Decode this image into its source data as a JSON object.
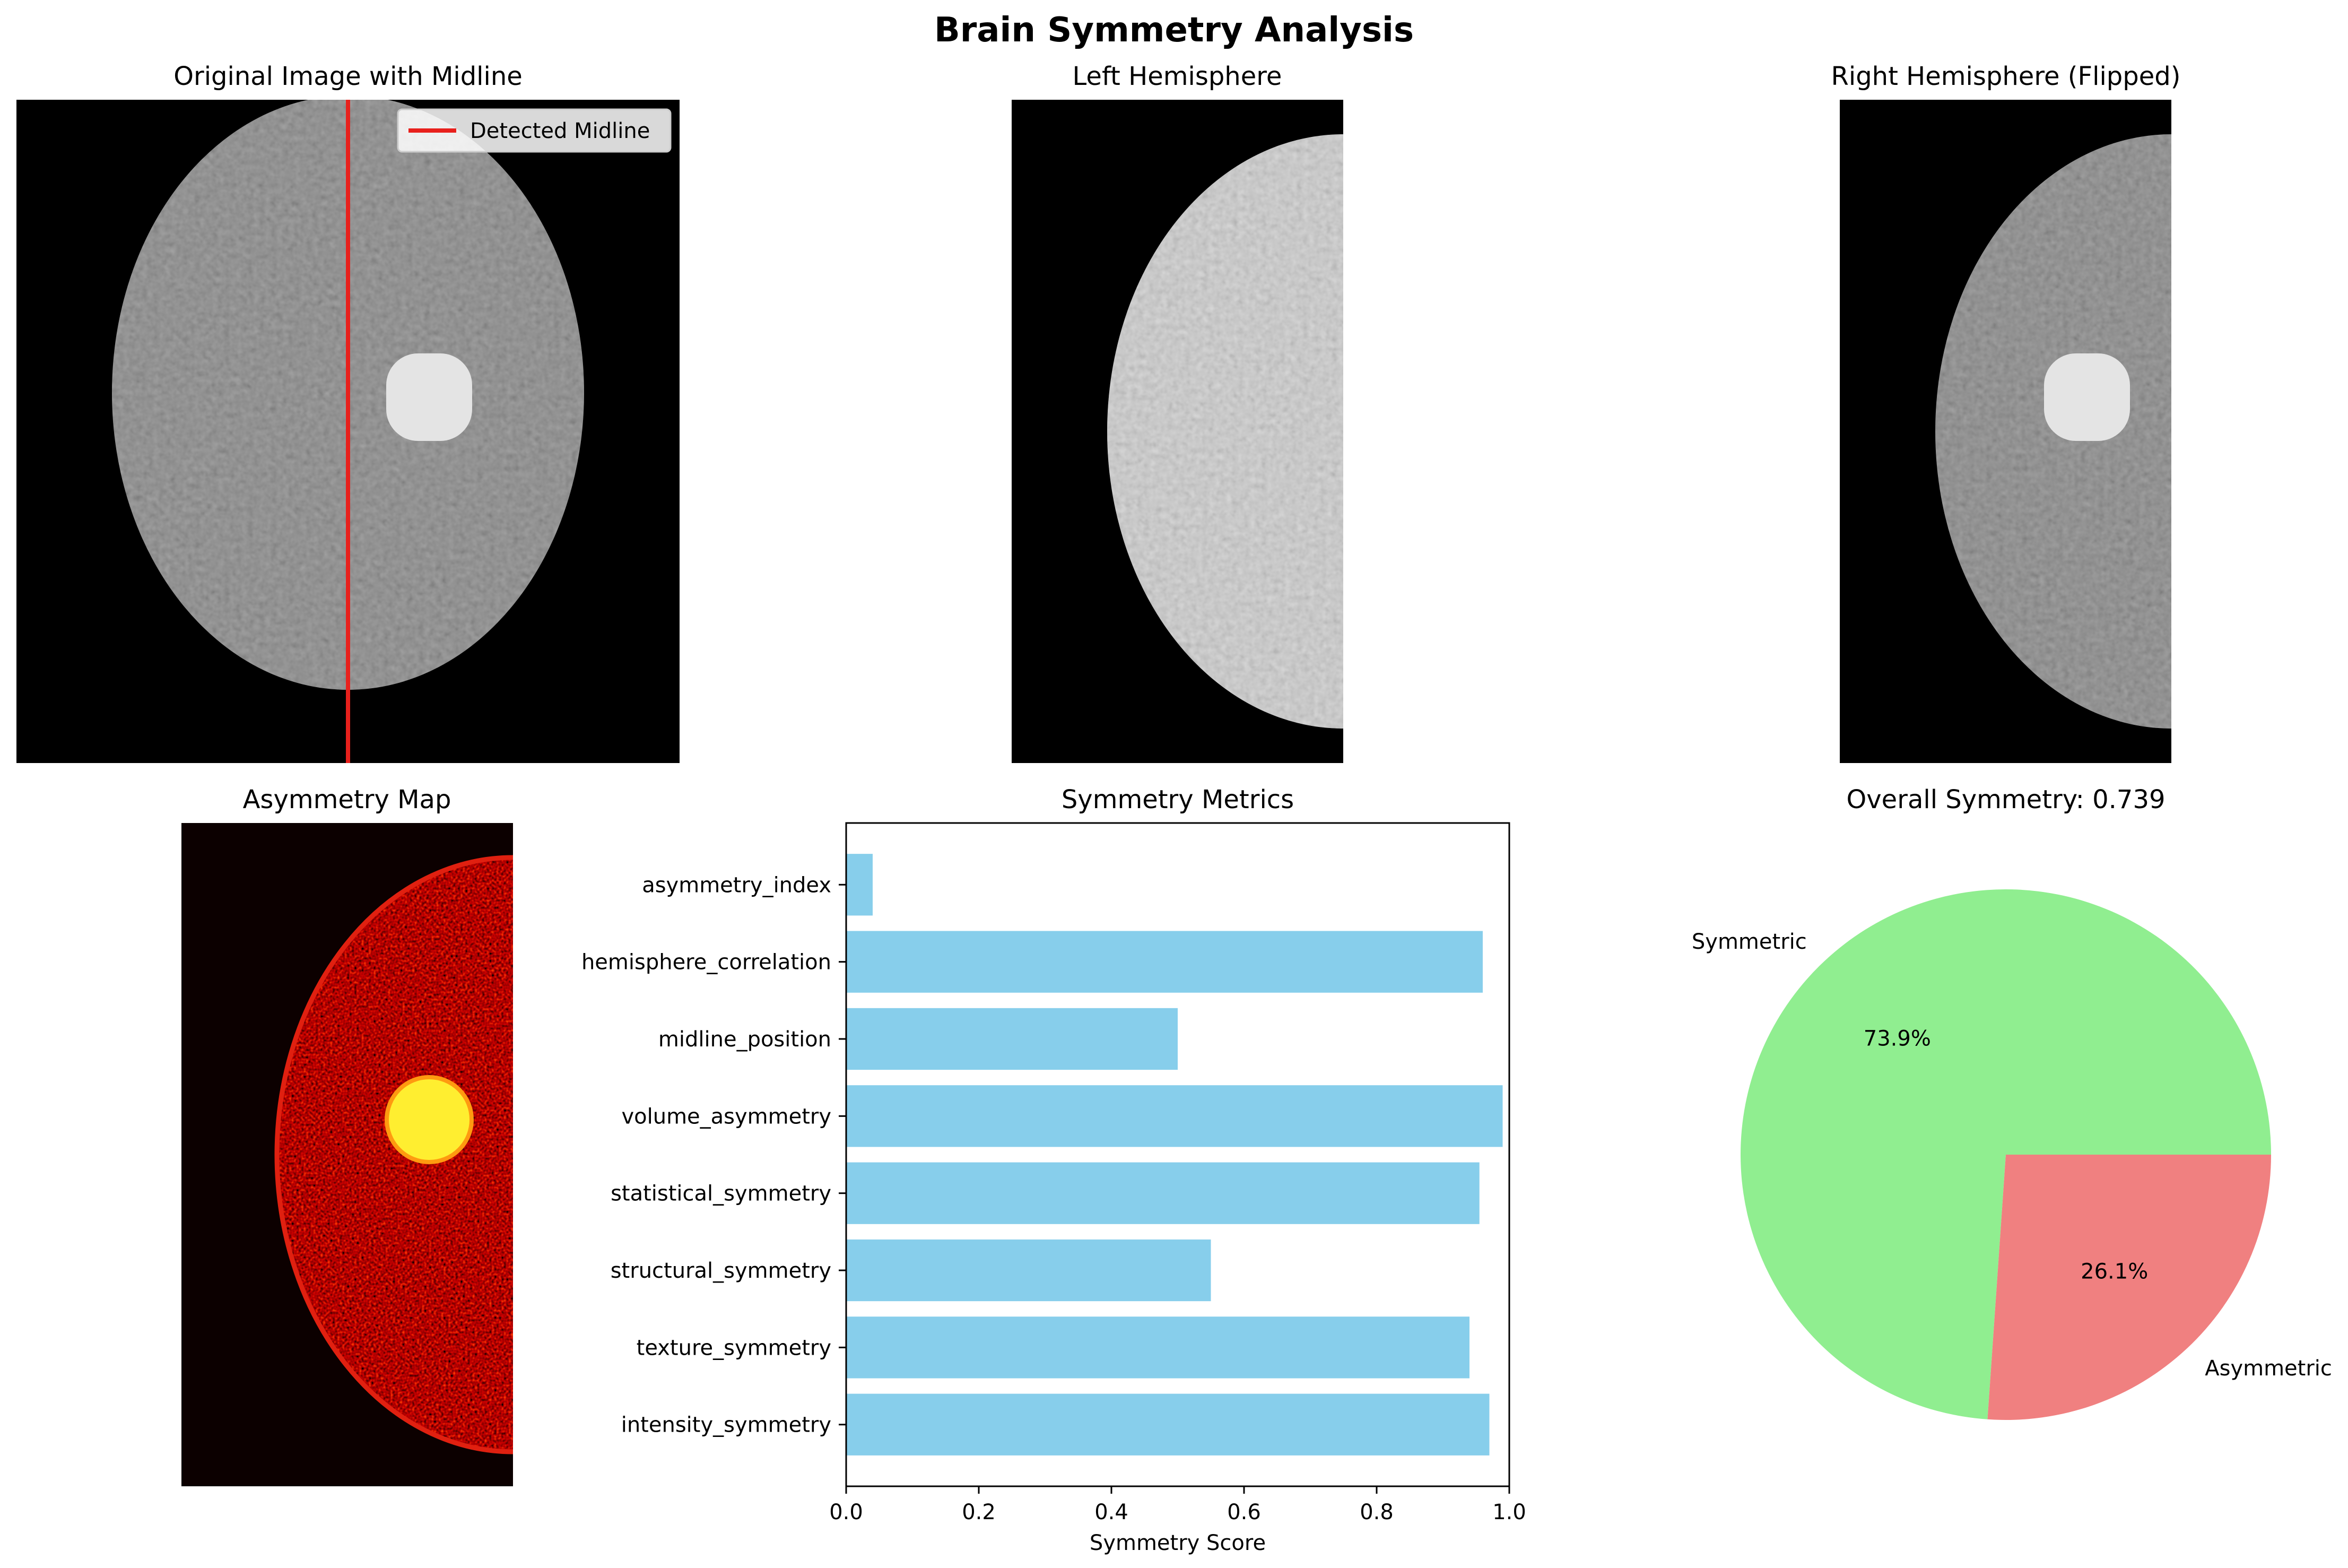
{
  "figure": {
    "title": "Brain Symmetry Analysis"
  },
  "panels": {
    "original": {
      "title": "Original Image with Midline",
      "legend_label": "Detected Midline",
      "midline_color": "#e8201c"
    },
    "left": {
      "title": "Left Hemisphere"
    },
    "right": {
      "title": "Right Hemisphere (Flipped)"
    },
    "asymmetry": {
      "title": "Asymmetry Map"
    },
    "pie_title": "Overall Symmetry: 0.739"
  },
  "colors": {
    "bar": "#87ceeb",
    "pie_symmetric": "#90ee90",
    "pie_asymmetric": "#f08080",
    "brain_gray": "#7c7c7c",
    "brain_light": "#cfcfcf",
    "heat_dark": "#2a0300",
    "heat_spot": "#ffee30"
  },
  "chart_data": [
    {
      "type": "bar",
      "orientation": "horizontal",
      "title": "Symmetry Metrics",
      "xlabel": "Symmetry Score",
      "ylabel": "",
      "categories": [
        "intensity_symmetry",
        "texture_symmetry",
        "structural_symmetry",
        "statistical_symmetry",
        "volume_asymmetry",
        "midline_position",
        "hemisphere_correlation",
        "asymmetry_index"
      ],
      "values": [
        0.97,
        0.94,
        0.55,
        0.955,
        0.99,
        0.5,
        0.96,
        0.04
      ],
      "xlim": [
        0,
        1.0
      ],
      "xticks": [
        "0.0",
        "0.2",
        "0.4",
        "0.6",
        "0.8",
        "1.0"
      ],
      "grid": false
    },
    {
      "type": "pie",
      "title": "Overall Symmetry: 0.739",
      "labels": [
        "Symmetric",
        "Asymmetric"
      ],
      "values": [
        73.9,
        26.1
      ],
      "pct_labels": [
        "73.9%",
        "26.1%"
      ]
    }
  ]
}
